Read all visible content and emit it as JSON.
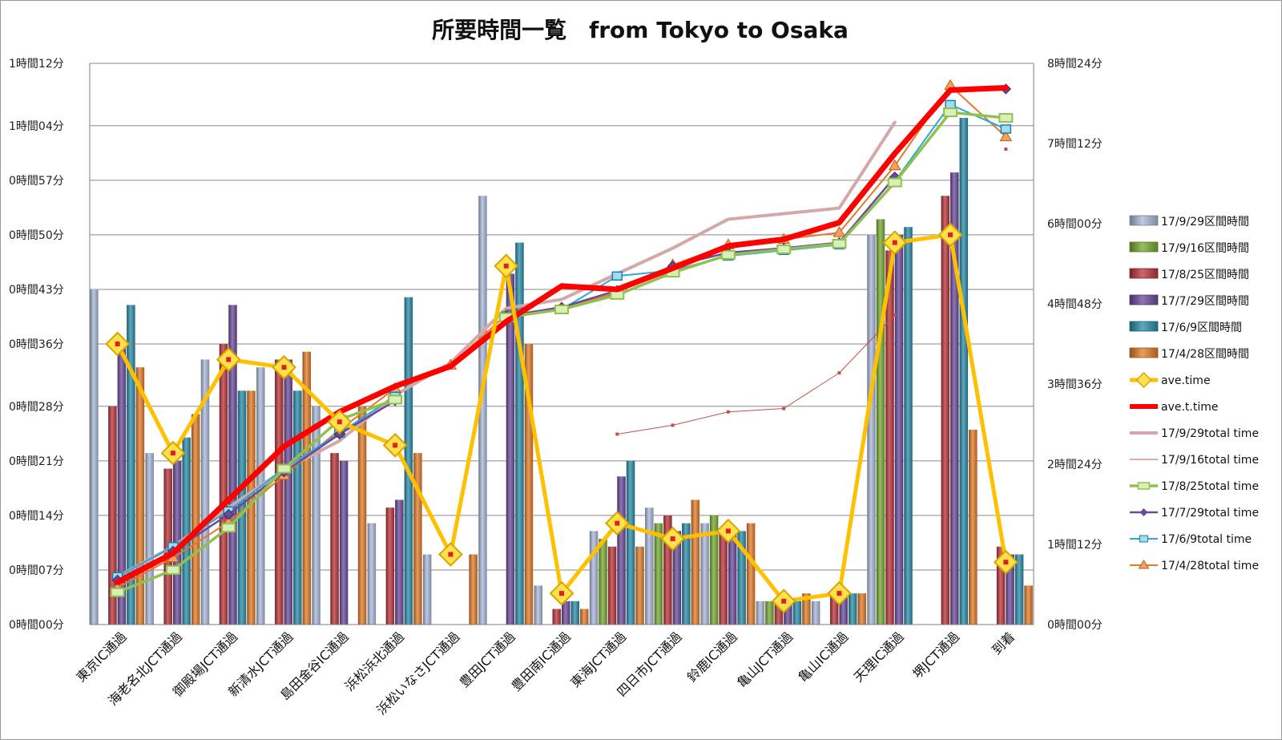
{
  "chart_data": {
    "type": "bar",
    "title": "所要時間一覧　from Tokyo to Osaka",
    "categories": [
      "東京IC通過",
      "海老名北JCT通過",
      "御殿場JCT通過",
      "新清水JCT通過",
      "島田金谷IC通過",
      "浜松浜北通過",
      "浜松いなさJCT通過",
      "豊田JCT通過",
      "豊田南IC通過",
      "東海JCT通過",
      "四日市JCT通過",
      "鈴鹿IC通過",
      "亀山JCT通過",
      "亀山IC通過",
      "天理IC通過",
      "堺JCT通過",
      "到着"
    ],
    "y_left": {
      "unit": "minutes",
      "range": [
        0,
        72
      ],
      "ticks": [
        0,
        7,
        14,
        21,
        28,
        36,
        43,
        50,
        57,
        64,
        72
      ],
      "tick_labels": [
        "0時間00分",
        "0時間07分",
        "0時間14分",
        "0時間21分",
        "0時間28分",
        "0時間36分",
        "0時間43分",
        "0時間50分",
        "0時間57分",
        "1時間04分",
        "1時間12分"
      ]
    },
    "y_right": {
      "unit": "minutes",
      "range": [
        0,
        504
      ],
      "ticks": [
        0,
        72,
        144,
        216,
        288,
        360,
        432,
        504
      ],
      "tick_labels": [
        "0時間00分",
        "1時間12分",
        "2時間24分",
        "3時間36分",
        "4時間48分",
        "6時間00分",
        "7時間12分",
        "8時間24分"
      ]
    },
    "bar_series": [
      {
        "name": "17/9/29区間時間",
        "color": "#a9b8d8",
        "values": [
          43,
          22,
          34,
          33,
          28,
          13,
          9,
          55,
          5,
          12,
          15,
          13,
          3,
          3,
          50,
          null,
          null
        ]
      },
      {
        "name": "17/9/16区間時間",
        "color": "#76a832",
        "values": [
          null,
          null,
          null,
          null,
          null,
          null,
          null,
          null,
          null,
          11,
          13,
          14,
          3,
          null,
          52,
          null,
          null
        ]
      },
      {
        "name": "17/8/25区間時間",
        "color": "#b8343a",
        "values": [
          28,
          20,
          36,
          34,
          22,
          15,
          null,
          null,
          2,
          10,
          14,
          12,
          3,
          4,
          48,
          55,
          10
        ]
      },
      {
        "name": "17/7/29区間時間",
        "color": "#6a4a9a",
        "values": [
          36,
          21,
          41,
          34,
          21,
          16,
          null,
          45,
          3,
          19,
          12,
          12,
          3,
          4,
          50,
          58,
          9
        ]
      },
      {
        "name": "17/6/9区間時間",
        "color": "#2a8ba8",
        "values": [
          41,
          24,
          30,
          30,
          null,
          42,
          null,
          49,
          3,
          21,
          13,
          12,
          3,
          4,
          51,
          65,
          9
        ]
      },
      {
        "name": "17/4/28区間時間",
        "color": "#e07b28",
        "values": [
          33,
          27,
          30,
          35,
          28,
          22,
          9,
          36,
          2,
          10,
          16,
          13,
          4,
          4,
          null,
          25,
          5
        ]
      }
    ],
    "line_series": [
      {
        "name": "ave.time",
        "axis": "left",
        "color": "#ffc000",
        "values": [
          36,
          22,
          34,
          33,
          26,
          23,
          9,
          46,
          4,
          13,
          11,
          12,
          3,
          4,
          49,
          50,
          8
        ]
      },
      {
        "name": "ave.t.time",
        "axis": "right",
        "color": "#ff0000",
        "values": [
          38,
          64,
          112,
          160,
          191,
          214,
          232,
          272,
          304,
          301,
          320,
          340,
          346,
          361,
          423,
          480,
          482
        ]
      },
      {
        "name": "17/9/29total time",
        "axis": "right",
        "color": "#d4a8a8",
        "values": [
          43,
          70,
          105,
          139,
          165,
          206,
          235,
          284,
          292,
          315,
          338,
          364,
          369,
          374,
          451,
          null,
          null
        ]
      },
      {
        "name": "17/9/16total time",
        "axis": "right",
        "color": "#c0504d",
        "values": [
          null,
          null,
          null,
          null,
          null,
          null,
          null,
          null,
          null,
          171,
          179,
          191,
          194,
          226,
          278,
          null,
          427
        ]
      },
      {
        "name": "17/8/25total time",
        "axis": "right",
        "color": "#92c050",
        "values": [
          29,
          49,
          87,
          140,
          184,
          202,
          null,
          276,
          283,
          296,
          316,
          332,
          337,
          342,
          397,
          460,
          455
        ]
      },
      {
        "name": "17/7/29total time",
        "axis": "right",
        "color": "#6a4a9a",
        "values": [
          40,
          66,
          99,
          137,
          171,
          201,
          null,
          277,
          285,
          300,
          322,
          334,
          338,
          343,
          402,
          null,
          481
        ]
      },
      {
        "name": "17/6/9total time",
        "axis": "right",
        "color": "#2aa8d8",
        "values": [
          43,
          70,
          102,
          140,
          172,
          205,
          null,
          277,
          283,
          313,
          318,
          331,
          336,
          341,
          398,
          467,
          445
        ]
      },
      {
        "name": "17/4/28total time",
        "axis": "right",
        "color": "#e07b28",
        "values": [
          33,
          60,
          92,
          134,
          175,
          212,
          233,
          278,
          284,
          298,
          323,
          341,
          346,
          352,
          412,
          484,
          438
        ]
      }
    ],
    "legend": {
      "position": "right"
    },
    "grid": true
  }
}
